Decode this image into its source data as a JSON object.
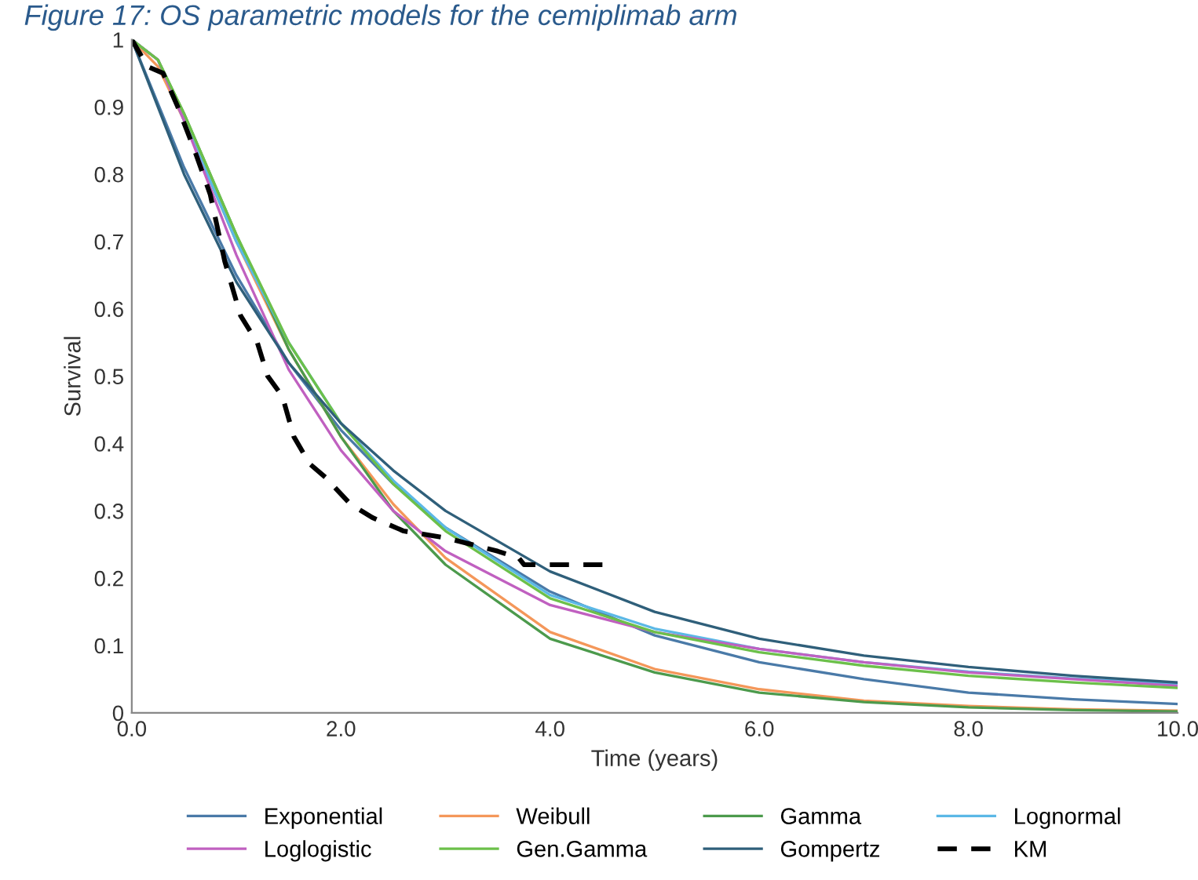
{
  "chart_data": {
    "type": "line",
    "title": "Figure 17: OS parametric models for the cemiplimab arm",
    "xlabel": "Time (years)",
    "ylabel": "Survival",
    "xlim": [
      0,
      10
    ],
    "ylim": [
      0,
      1
    ],
    "xticks": [
      {
        "value": 0,
        "label": "0.0"
      },
      {
        "value": 2,
        "label": "2.0"
      },
      {
        "value": 4,
        "label": "4.0"
      },
      {
        "value": 6,
        "label": "6.0"
      },
      {
        "value": 8,
        "label": "8.0"
      },
      {
        "value": 10,
        "label": "10.0"
      }
    ],
    "yticks": [
      0,
      0.1,
      0.2,
      0.3,
      0.4,
      0.5,
      0.6,
      0.7,
      0.8,
      0.9,
      1
    ],
    "grid": false,
    "legend": "bottom",
    "marker": "none",
    "series": [
      {
        "name": "Exponential",
        "color": "#4a7aa8",
        "line_style": "solid",
        "x": [
          0,
          0.5,
          1,
          1.5,
          2,
          2.5,
          3,
          4,
          5,
          6,
          7,
          8,
          9,
          10
        ],
        "values": [
          1,
          0.81,
          0.65,
          0.52,
          0.42,
          0.34,
          0.275,
          0.18,
          0.115,
          0.075,
          0.05,
          0.03,
          0.02,
          0.013
        ]
      },
      {
        "name": "Weibull",
        "color": "#f4975a",
        "line_style": "solid",
        "x": [
          0,
          0.25,
          0.5,
          1,
          1.5,
          2,
          2.5,
          3,
          4,
          5,
          6,
          7,
          8,
          9,
          10
        ],
        "values": [
          1,
          0.96,
          0.88,
          0.7,
          0.54,
          0.41,
          0.31,
          0.23,
          0.12,
          0.065,
          0.035,
          0.018,
          0.01,
          0.005,
          0.003
        ]
      },
      {
        "name": "Gamma",
        "color": "#4c9a4c",
        "line_style": "solid",
        "x": [
          0,
          0.25,
          0.5,
          1,
          1.5,
          2,
          2.5,
          3,
          4,
          5,
          6,
          7,
          8,
          9,
          10
        ],
        "values": [
          1,
          0.97,
          0.89,
          0.71,
          0.54,
          0.41,
          0.3,
          0.22,
          0.11,
          0.06,
          0.03,
          0.016,
          0.008,
          0.004,
          0.002
        ]
      },
      {
        "name": "Lognormal",
        "color": "#5bb8e6",
        "line_style": "solid",
        "x": [
          0,
          0.25,
          0.5,
          1,
          1.5,
          2,
          2.5,
          3,
          4,
          5,
          6,
          7,
          8,
          9,
          10
        ],
        "values": [
          1,
          0.97,
          0.88,
          0.7,
          0.55,
          0.43,
          0.345,
          0.275,
          0.175,
          0.125,
          0.095,
          0.075,
          0.061,
          0.051,
          0.043
        ]
      },
      {
        "name": "Loglogistic",
        "color": "#c060c0",
        "line_style": "solid",
        "x": [
          0,
          0.25,
          0.5,
          1,
          1.5,
          2,
          2.5,
          3,
          4,
          5,
          6,
          7,
          8,
          9,
          10
        ],
        "values": [
          1,
          0.97,
          0.88,
          0.68,
          0.51,
          0.39,
          0.3,
          0.24,
          0.16,
          0.12,
          0.095,
          0.075,
          0.06,
          0.05,
          0.04
        ]
      },
      {
        "name": "Gen.Gamma",
        "color": "#6cc04a",
        "line_style": "solid",
        "x": [
          0,
          0.25,
          0.5,
          1,
          1.5,
          2,
          2.5,
          3,
          4,
          5,
          6,
          7,
          8,
          9,
          10
        ],
        "values": [
          1,
          0.97,
          0.89,
          0.71,
          0.55,
          0.43,
          0.34,
          0.27,
          0.17,
          0.12,
          0.09,
          0.07,
          0.055,
          0.045,
          0.037
        ]
      },
      {
        "name": "Gompertz",
        "color": "#2f5f7a",
        "line_style": "solid",
        "x": [
          0,
          0.5,
          1,
          1.5,
          2,
          2.5,
          3,
          4,
          5,
          6,
          7,
          8,
          9,
          10
        ],
        "values": [
          1,
          0.8,
          0.64,
          0.52,
          0.43,
          0.36,
          0.3,
          0.21,
          0.15,
          0.11,
          0.085,
          0.068,
          0.055,
          0.045
        ]
      },
      {
        "name": "KM",
        "color": "#000000",
        "line_style": "dashed",
        "x": [
          0,
          0.15,
          0.3,
          0.44,
          0.59,
          0.75,
          0.89,
          1.04,
          1.2,
          1.3,
          1.44,
          1.55,
          1.7,
          1.85,
          2.09,
          2.3,
          2.6,
          3.0,
          3.5,
          3.7,
          3.75,
          4.5
        ],
        "values": [
          1,
          0.96,
          0.95,
          0.9,
          0.84,
          0.77,
          0.67,
          0.59,
          0.55,
          0.5,
          0.47,
          0.41,
          0.37,
          0.35,
          0.31,
          0.29,
          0.27,
          0.26,
          0.24,
          0.23,
          0.22,
          0.22
        ]
      }
    ]
  }
}
